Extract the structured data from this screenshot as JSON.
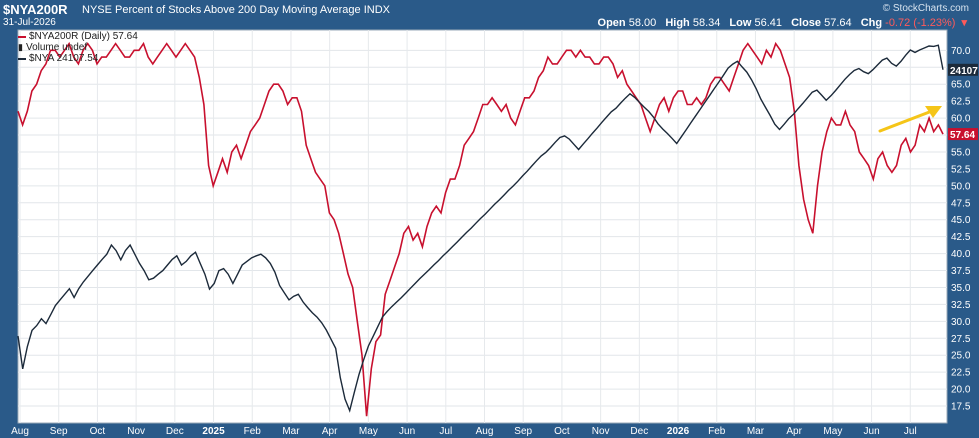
{
  "header": {
    "symbol": "$NYA200R",
    "name": "NYSE Percent of Stocks Above 200 Day Moving Average",
    "exchange": "INDX",
    "date": "31-Jul-2026",
    "brand": "© StockCharts.com",
    "open_label": "Open",
    "open": "58.00",
    "high_label": "High",
    "high": "58.34",
    "low_label": "Low",
    "low": "56.41",
    "close_label": "Close",
    "close": "57.64",
    "chg_label": "Chg",
    "chg": "-0.72 (-1.23%)"
  },
  "legend": {
    "primary": "$NYA200R (Daily) 57.64",
    "volume": "Volume undef",
    "secondary": "$NYA 24107.54"
  },
  "colors": {
    "primary": "#c8102e",
    "secondary": "#1c2a3a",
    "arrow": "#f5c518",
    "plot_bg": "#ffffff",
    "panel_bg": "#2a5a89"
  },
  "chart_data": {
    "type": "line",
    "x_ticks": [
      "Aug",
      "Sep",
      "Oct",
      "Nov",
      "Dec",
      "2025",
      "Feb",
      "Mar",
      "Apr",
      "May",
      "Jun",
      "Jul",
      "Aug",
      "Sep",
      "Oct",
      "Nov",
      "Dec",
      "2026",
      "Feb",
      "Mar",
      "Apr",
      "May",
      "Jun",
      "Jul"
    ],
    "y_ticks": [
      "17.5",
      "20.0",
      "22.5",
      "25.0",
      "27.5",
      "30.0",
      "32.5",
      "35.0",
      "37.5",
      "40.0",
      "42.5",
      "45.0",
      "47.5",
      "50.0",
      "52.5",
      "55.0",
      "57.5",
      "60.0",
      "62.5",
      "65.0",
      "67.5",
      "70.0"
    ],
    "ylim": [
      15.0,
      73.0
    ],
    "grid": true,
    "last_value_tags": [
      "24107",
      "57.64"
    ],
    "series": [
      {
        "name": "$NYA200R",
        "values": [
          61,
          59,
          61,
          64,
          65,
          67,
          68,
          70,
          70,
          69,
          70,
          71,
          69,
          68,
          70,
          71,
          70,
          68,
          69,
          69,
          70,
          71,
          70,
          69,
          69,
          70,
          70,
          71,
          69,
          68,
          69,
          70,
          71,
          70,
          69,
          70,
          71,
          70,
          69,
          66,
          62,
          53,
          50,
          52,
          54,
          52,
          55,
          56,
          54,
          56,
          58,
          59,
          60,
          62,
          64,
          65,
          65,
          64,
          62,
          63,
          63,
          61,
          56,
          54,
          52,
          51,
          50,
          46,
          45,
          43,
          40,
          37,
          35,
          30,
          25,
          16,
          23,
          27,
          28,
          34,
          36,
          38,
          40,
          43,
          44,
          42,
          43,
          41,
          44,
          46,
          47,
          46,
          49,
          51,
          51,
          53,
          56,
          57,
          58,
          60,
          62,
          62,
          63,
          62,
          61,
          62,
          60,
          59,
          61,
          63,
          63,
          64,
          66,
          67,
          69,
          68,
          68,
          69,
          70,
          70,
          69,
          70,
          69,
          69,
          68,
          68,
          69,
          69,
          68,
          66,
          67,
          65,
          64,
          63,
          62,
          60,
          58,
          60,
          62,
          63,
          61,
          63,
          64,
          64,
          62,
          62,
          63,
          62,
          63,
          65,
          66,
          66,
          65,
          64,
          66,
          68,
          70,
          71,
          70,
          69,
          68,
          70,
          69,
          71,
          70,
          68,
          66,
          61,
          53,
          48,
          45,
          43,
          50,
          55,
          58,
          60,
          59,
          59,
          61,
          59,
          58,
          55,
          54,
          53,
          51,
          54,
          55,
          53,
          52,
          53,
          56,
          57,
          55,
          56,
          59,
          58,
          60,
          58,
          59,
          57.64
        ]
      },
      {
        "name": "$NYA",
        "values": [
          17470,
          16650,
          17200,
          17610,
          17730,
          17900,
          17780,
          18000,
          18230,
          18370,
          18510,
          18650,
          18430,
          18650,
          18820,
          18960,
          19100,
          19240,
          19380,
          19510,
          19740,
          19600,
          19370,
          19600,
          19740,
          19510,
          19280,
          19100,
          18870,
          18910,
          19010,
          19100,
          19240,
          19380,
          19470,
          19240,
          19330,
          19470,
          19560,
          19280,
          19010,
          18640,
          18780,
          19100,
          19150,
          19010,
          18780,
          19010,
          19240,
          19330,
          19420,
          19470,
          19510,
          19420,
          19280,
          19060,
          18730,
          18550,
          18370,
          18460,
          18510,
          18320,
          18180,
          18050,
          17940,
          17800,
          17620,
          17390,
          17160,
          16430,
          15900,
          15610,
          16070,
          16510,
          16880,
          17220,
          17460,
          17700,
          17940,
          18080,
          18200,
          18310,
          18420,
          18540,
          18660,
          18780,
          18900,
          19010,
          19120,
          19240,
          19350,
          19470,
          19580,
          19700,
          19810,
          19930,
          20050,
          20160,
          20280,
          20400,
          20510,
          20630,
          20750,
          20860,
          20980,
          21100,
          21210,
          21330,
          21460,
          21580,
          21710,
          21840,
          21960,
          22050,
          22170,
          22300,
          22420,
          22460,
          22380,
          22250,
          22120,
          22260,
          22390,
          22530,
          22660,
          22800,
          22930,
          23060,
          23150,
          23280,
          23400,
          23510,
          23420,
          23300,
          23180,
          23070,
          22930,
          22760,
          22630,
          22520,
          22400,
          22270,
          22440,
          22610,
          22780,
          22950,
          23120,
          23290,
          23460,
          23630,
          23800,
          23970,
          24150,
          24250,
          24320,
          24180,
          24050,
          23860,
          23640,
          23380,
          23170,
          22970,
          22750,
          22620,
          22750,
          22890,
          23000,
          23140,
          23270,
          23410,
          23550,
          23600,
          23480,
          23350,
          23460,
          23590,
          23730,
          23870,
          23990,
          24090,
          24140,
          24060,
          24010,
          24110,
          24230,
          24350,
          24400,
          24270,
          24200,
          24320,
          24470,
          24600,
          24540,
          24600,
          24650,
          24700,
          24690,
          24720,
          24107.54
        ]
      }
    ]
  }
}
